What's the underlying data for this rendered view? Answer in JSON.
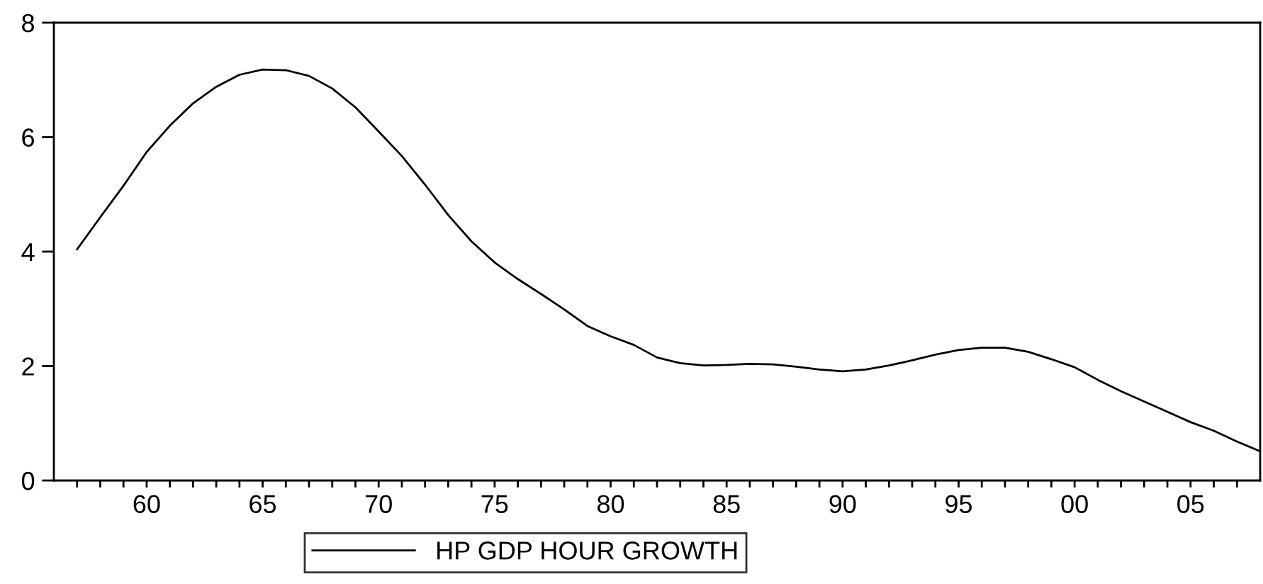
{
  "chart_data": {
    "type": "line",
    "x": [
      1957,
      1958,
      1959,
      1960,
      1961,
      1962,
      1963,
      1964,
      1965,
      1966,
      1967,
      1968,
      1969,
      1970,
      1971,
      1972,
      1973,
      1974,
      1975,
      1976,
      1977,
      1978,
      1979,
      1980,
      1981,
      1982,
      1983,
      1984,
      1985,
      1986,
      1987,
      1988,
      1989,
      1990,
      1991,
      1992,
      1993,
      1994,
      1995,
      1996,
      1997,
      1998,
      1999,
      2000,
      2001,
      2002,
      2003,
      2004,
      2005,
      2006,
      2007,
      2008
    ],
    "series": [
      {
        "name": "HP GDP HOUR GROWTH",
        "color": "#000000",
        "values": [
          4.04,
          4.6,
          5.15,
          5.74,
          6.2,
          6.59,
          6.88,
          7.09,
          7.18,
          7.17,
          7.07,
          6.85,
          6.52,
          6.1,
          5.67,
          5.17,
          4.64,
          4.18,
          3.81,
          3.52,
          3.26,
          2.99,
          2.7,
          2.52,
          2.37,
          2.15,
          2.05,
          2.01,
          2.02,
          2.04,
          2.03,
          1.99,
          1.94,
          1.91,
          1.94,
          2.01,
          2.1,
          2.2,
          2.28,
          2.32,
          2.32,
          2.25,
          2.12,
          1.98,
          1.76,
          1.56,
          1.38,
          1.2,
          1.02,
          0.87,
          0.68,
          0.51
        ]
      }
    ],
    "xlim": [
      1956,
      2008
    ],
    "xticks": [
      {
        "value": 1957,
        "label": null
      },
      {
        "value": 1958,
        "label": null
      },
      {
        "value": 1959,
        "label": null
      },
      {
        "value": 1960,
        "label": "60"
      },
      {
        "value": 1961,
        "label": null
      },
      {
        "value": 1962,
        "label": null
      },
      {
        "value": 1963,
        "label": null
      },
      {
        "value": 1964,
        "label": null
      },
      {
        "value": 1965,
        "label": "65"
      },
      {
        "value": 1966,
        "label": null
      },
      {
        "value": 1967,
        "label": null
      },
      {
        "value": 1968,
        "label": null
      },
      {
        "value": 1969,
        "label": null
      },
      {
        "value": 1970,
        "label": "70"
      },
      {
        "value": 1971,
        "label": null
      },
      {
        "value": 1972,
        "label": null
      },
      {
        "value": 1973,
        "label": null
      },
      {
        "value": 1974,
        "label": null
      },
      {
        "value": 1975,
        "label": "75"
      },
      {
        "value": 1976,
        "label": null
      },
      {
        "value": 1977,
        "label": null
      },
      {
        "value": 1978,
        "label": null
      },
      {
        "value": 1979,
        "label": null
      },
      {
        "value": 1980,
        "label": "80"
      },
      {
        "value": 1981,
        "label": null
      },
      {
        "value": 1982,
        "label": null
      },
      {
        "value": 1983,
        "label": null
      },
      {
        "value": 1984,
        "label": null
      },
      {
        "value": 1985,
        "label": "85"
      },
      {
        "value": 1986,
        "label": null
      },
      {
        "value": 1987,
        "label": null
      },
      {
        "value": 1988,
        "label": null
      },
      {
        "value": 1989,
        "label": null
      },
      {
        "value": 1990,
        "label": "90"
      },
      {
        "value": 1991,
        "label": null
      },
      {
        "value": 1992,
        "label": null
      },
      {
        "value": 1993,
        "label": null
      },
      {
        "value": 1994,
        "label": null
      },
      {
        "value": 1995,
        "label": "95"
      },
      {
        "value": 1996,
        "label": null
      },
      {
        "value": 1997,
        "label": null
      },
      {
        "value": 1998,
        "label": null
      },
      {
        "value": 1999,
        "label": null
      },
      {
        "value": 2000,
        "label": "00"
      },
      {
        "value": 2001,
        "label": null
      },
      {
        "value": 2002,
        "label": null
      },
      {
        "value": 2003,
        "label": null
      },
      {
        "value": 2004,
        "label": null
      },
      {
        "value": 2005,
        "label": "05"
      },
      {
        "value": 2006,
        "label": null
      },
      {
        "value": 2007,
        "label": null
      }
    ],
    "ylim": [
      0,
      8
    ],
    "yticks": [
      0,
      2,
      4,
      6,
      8
    ],
    "grid": false,
    "legend": "bottom",
    "marker": "none",
    "line_style": "solid"
  }
}
